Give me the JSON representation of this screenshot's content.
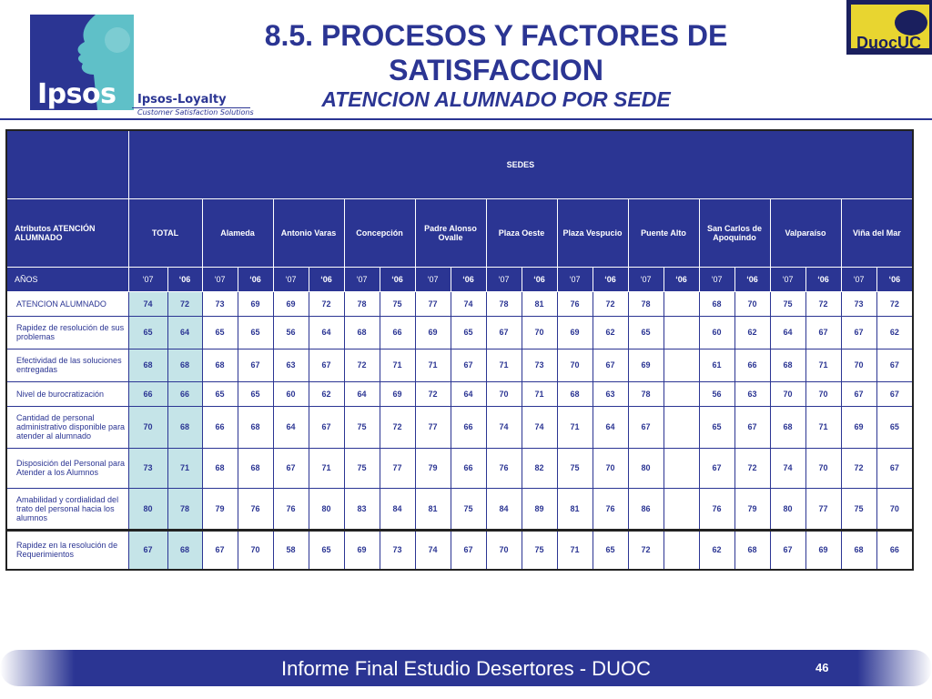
{
  "header": {
    "logo_text": "Ipsos",
    "loyalty_title": "Ipsos-Loyalty",
    "loyalty_subtitle": "Customer Satisfaction Solutions",
    "title_line1": "8.5. PROCESOS Y FACTORES DE",
    "title_line2": "SATISFACCION",
    "subtitle_prefix": "ATENCION ALUMNADO POR ",
    "subtitle_emph": "SEDE",
    "duoc_logo_text": "DuocUC"
  },
  "table": {
    "sedes_label": "SEDES",
    "attr_header": "Atributos ATENCIÓN ALUMNADO",
    "columns": [
      "TOTAL",
      "Alameda",
      "Antonio Varas",
      "Concepción",
      "Padre Alonso Ovalle",
      "Plaza Oeste",
      "Plaza Vespucio",
      "Puente Alto",
      "San Carlos de Apoquindo",
      "Valparaíso",
      "Viña del Mar"
    ],
    "years_label": "AÑOS",
    "year_a": "‘07",
    "year_b": "‘06",
    "rows": [
      {
        "label": "ATENCION ALUMNADO",
        "values": [
          "74",
          "72",
          "73",
          "69",
          "69",
          "72",
          "78",
          "75",
          "77",
          "74",
          "78",
          "81",
          "76",
          "72",
          "78",
          "",
          "68",
          "70",
          "75",
          "72",
          "73",
          "72"
        ]
      },
      {
        "label": "Rapidez de resolución de sus problemas",
        "values": [
          "65",
          "64",
          "65",
          "65",
          "56",
          "64",
          "68",
          "66",
          "69",
          "65",
          "67",
          "70",
          "69",
          "62",
          "65",
          "",
          "60",
          "62",
          "64",
          "67",
          "67",
          "62"
        ]
      },
      {
        "label": "Efectividad de las soluciones entregadas",
        "values": [
          "68",
          "68",
          "68",
          "67",
          "63",
          "67",
          "72",
          "71",
          "71",
          "67",
          "71",
          "73",
          "70",
          "67",
          "69",
          "",
          "61",
          "66",
          "68",
          "71",
          "70",
          "67"
        ]
      },
      {
        "label": "Nivel de burocratización",
        "values": [
          "66",
          "66",
          "65",
          "65",
          "60",
          "62",
          "64",
          "69",
          "72",
          "64",
          "70",
          "71",
          "68",
          "63",
          "78",
          "",
          "56",
          "63",
          "70",
          "70",
          "67",
          "67"
        ]
      },
      {
        "label": "Cantidad de personal administrativo disponible para atender al alumnado",
        "values": [
          "70",
          "68",
          "66",
          "68",
          "64",
          "67",
          "75",
          "72",
          "77",
          "66",
          "74",
          "74",
          "71",
          "64",
          "67",
          "",
          "65",
          "67",
          "68",
          "71",
          "69",
          "65"
        ]
      },
      {
        "label": "Disposición del Personal para Atender a los Alumnos",
        "values": [
          "73",
          "71",
          "68",
          "68",
          "67",
          "71",
          "75",
          "77",
          "79",
          "66",
          "76",
          "82",
          "75",
          "70",
          "80",
          "",
          "67",
          "72",
          "74",
          "70",
          "72",
          "67"
        ]
      },
      {
        "label": "Amabilidad y cordialidad del trato del personal hacia los alumnos",
        "values": [
          "80",
          "78",
          "79",
          "76",
          "76",
          "80",
          "83",
          "84",
          "81",
          "75",
          "84",
          "89",
          "81",
          "76",
          "86",
          "",
          "76",
          "79",
          "80",
          "77",
          "75",
          "70"
        ]
      },
      {
        "label": "Rapidez en la resolución de Requerimientos",
        "values": [
          "67",
          "68",
          "67",
          "70",
          "58",
          "65",
          "69",
          "73",
          "74",
          "67",
          "70",
          "75",
          "71",
          "65",
          "72",
          "",
          "62",
          "68",
          "67",
          "69",
          "68",
          "66"
        ]
      }
    ]
  },
  "footer": {
    "text": "Informe Final Estudio Desertores - DUOC",
    "page": "46"
  },
  "colors": {
    "brand_blue": "#2b3593",
    "total_cell": "#c5e4e8",
    "duoc_yellow": "#e8d530"
  }
}
